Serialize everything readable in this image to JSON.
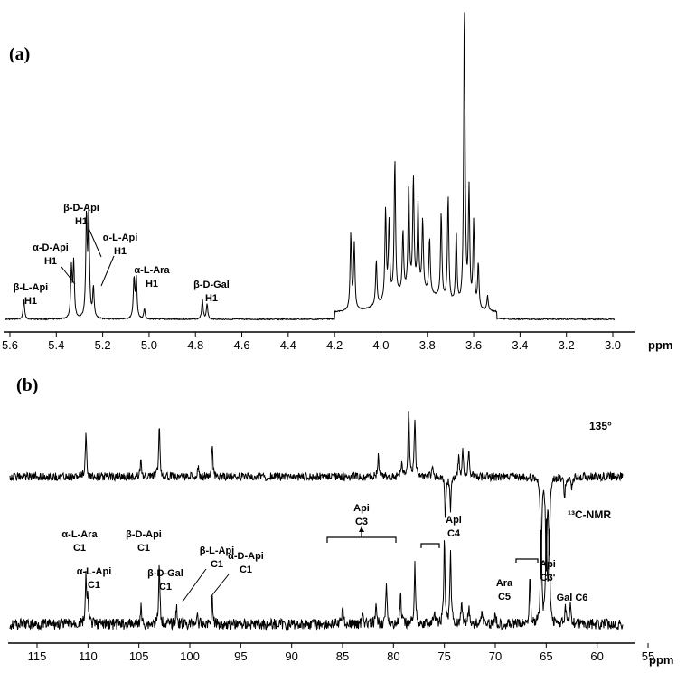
{
  "chart_data": [
    {
      "type": "line",
      "panel_label": "(a)",
      "xlabel": "ppm",
      "xlim": [
        5.6,
        3.0
      ],
      "x_reversed": true,
      "x_ticks": [
        "5.6",
        "5.4",
        "5.2",
        "5.0",
        "4.8",
        "4.6",
        "4.4",
        "4.2",
        "4.0",
        "3.8",
        "3.6",
        "3.4",
        "3.2",
        "3.0"
      ],
      "peaks": [
        {
          "x": 5.54,
          "y": 4
        },
        {
          "x": 5.335,
          "y": 10
        },
        {
          "x": 5.325,
          "y": 11
        },
        {
          "x": 5.27,
          "y": 20
        },
        {
          "x": 5.26,
          "y": 20
        },
        {
          "x": 5.24,
          "y": 6
        },
        {
          "x": 5.065,
          "y": 8
        },
        {
          "x": 5.055,
          "y": 8
        },
        {
          "x": 5.02,
          "y": 2
        },
        {
          "x": 4.77,
          "y": 4
        },
        {
          "x": 4.75,
          "y": 3
        },
        {
          "x": 4.13,
          "y": 15
        },
        {
          "x": 4.115,
          "y": 13
        },
        {
          "x": 4.02,
          "y": 9
        },
        {
          "x": 3.98,
          "y": 18
        },
        {
          "x": 3.965,
          "y": 15
        },
        {
          "x": 3.94,
          "y": 27
        },
        {
          "x": 3.905,
          "y": 12
        },
        {
          "x": 3.88,
          "y": 21
        },
        {
          "x": 3.86,
          "y": 22
        },
        {
          "x": 3.84,
          "y": 17
        },
        {
          "x": 3.82,
          "y": 14
        },
        {
          "x": 3.79,
          "y": 11
        },
        {
          "x": 3.74,
          "y": 17
        },
        {
          "x": 3.71,
          "y": 21
        },
        {
          "x": 3.675,
          "y": 14
        },
        {
          "x": 3.64,
          "y": 60
        },
        {
          "x": 3.62,
          "y": 23
        },
        {
          "x": 3.6,
          "y": 17
        },
        {
          "x": 3.58,
          "y": 9
        },
        {
          "x": 3.54,
          "y": 3
        }
      ],
      "annotations": [
        {
          "lines": [
            "β-L-Api",
            "H1"
          ]
        },
        {
          "lines": [
            "α-D-Api",
            "H1"
          ]
        },
        {
          "lines": [
            "β-D-Api",
            "H1"
          ]
        },
        {
          "lines": [
            "α-L-Api",
            "H1"
          ]
        },
        {
          "lines": [
            "α-L-Ara",
            "H1"
          ]
        },
        {
          "lines": [
            "β-D-Gal",
            "H1"
          ]
        }
      ]
    },
    {
      "type": "line",
      "panel_label": "(b)",
      "xlabel": "ppm",
      "xlim": [
        117,
        55
      ],
      "x_reversed": true,
      "x_ticks": [
        "115",
        "110",
        "105",
        "100",
        "95",
        "90",
        "85",
        "80",
        "75",
        "70",
        "65",
        "60",
        "55"
      ],
      "series": [
        {
          "name": "135°",
          "peaks": [
            {
              "x": 110.2,
              "y": 22
            },
            {
              "x": 104.8,
              "y": 8
            },
            {
              "x": 103.0,
              "y": 26
            },
            {
              "x": 99.2,
              "y": 5
            },
            {
              "x": 97.8,
              "y": 16
            },
            {
              "x": 81.5,
              "y": 10
            },
            {
              "x": 79.2,
              "y": 7
            },
            {
              "x": 78.5,
              "y": 34
            },
            {
              "x": 77.9,
              "y": 28
            },
            {
              "x": 76.2,
              "y": 6
            },
            {
              "x": 74.9,
              "y": -20
            },
            {
              "x": 74.4,
              "y": -16
            },
            {
              "x": 73.6,
              "y": 10
            },
            {
              "x": 73.2,
              "y": 12
            },
            {
              "x": 72.6,
              "y": 14
            },
            {
              "x": 65.5,
              "y": -48
            },
            {
              "x": 65.0,
              "y": -45
            },
            {
              "x": 64.7,
              "y": -38
            },
            {
              "x": 63.2,
              "y": -10
            },
            {
              "x": 62.5,
              "y": -5
            }
          ]
        },
        {
          "name": "13C-NMR",
          "peaks": [
            {
              "x": 110.2,
              "y": 22
            },
            {
              "x": 110.0,
              "y": 12
            },
            {
              "x": 104.8,
              "y": 8
            },
            {
              "x": 103.0,
              "y": 28
            },
            {
              "x": 101.3,
              "y": 8
            },
            {
              "x": 99.3,
              "y": 5
            },
            {
              "x": 97.8,
              "y": 13
            },
            {
              "x": 85.0,
              "y": 10
            },
            {
              "x": 83.0,
              "y": 7
            },
            {
              "x": 81.7,
              "y": 8
            },
            {
              "x": 80.7,
              "y": 18
            },
            {
              "x": 79.3,
              "y": 14
            },
            {
              "x": 77.9,
              "y": 30
            },
            {
              "x": 76.0,
              "y": 6
            },
            {
              "x": 75.0,
              "y": 40
            },
            {
              "x": 74.4,
              "y": 34
            },
            {
              "x": 73.3,
              "y": 12
            },
            {
              "x": 72.6,
              "y": 9
            },
            {
              "x": 71.3,
              "y": 8
            },
            {
              "x": 70.0,
              "y": 6
            },
            {
              "x": 66.6,
              "y": 22
            },
            {
              "x": 65.5,
              "y": 48
            },
            {
              "x": 65.0,
              "y": 50
            },
            {
              "x": 64.7,
              "y": 46
            },
            {
              "x": 63.1,
              "y": 8
            },
            {
              "x": 62.6,
              "y": 10
            }
          ]
        }
      ],
      "side_labels": [
        "135°",
        "¹³C-NMR"
      ],
      "annotations": [
        {
          "lines": [
            "α-L-Ara",
            "C1"
          ]
        },
        {
          "lines": [
            "α-L-Api",
            "C1"
          ]
        },
        {
          "lines": [
            "β-D-Api",
            "C1"
          ]
        },
        {
          "lines": [
            "β-D-Gal",
            "C1"
          ]
        },
        {
          "lines": [
            "β-L-Api",
            "C1"
          ]
        },
        {
          "lines": [
            "α-D-Api",
            "C1"
          ]
        },
        {
          "lines": [
            "Api",
            "C3"
          ]
        },
        {
          "lines": [
            "Api",
            "C4"
          ]
        },
        {
          "lines": [
            "Ara",
            "C5"
          ]
        },
        {
          "lines": [
            "Api",
            "C3'"
          ]
        },
        {
          "lines": [
            "Gal C6"
          ]
        }
      ]
    }
  ]
}
